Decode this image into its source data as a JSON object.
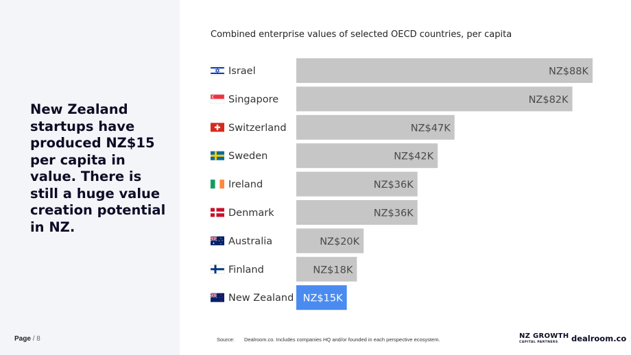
{
  "headline": "New Zealand startups have produced NZ$15 per capita in value. There is still a huge value creation potential in NZ.",
  "page": {
    "label": "Page",
    "number": "/ 8"
  },
  "source": {
    "label": "Source:",
    "text": "Dealroom.co. Includes companies HQ and/or founded in each perspective ecosystem."
  },
  "logos": {
    "nz_growth_line1": "NZ GROWTH",
    "nz_growth_line2": "CAPITAL PARTNERS",
    "dealroom": "dealroom.co"
  },
  "colors": {
    "bar": "#c6c6c6",
    "highlight": "#4a8bf0",
    "bar_label": "#4a4a4a",
    "highlight_label": "#ffffff"
  },
  "chart_data": {
    "type": "bar",
    "orientation": "horizontal",
    "title": "Combined enterprise values of selected OECD countries, per capita",
    "unit": "NZ$K",
    "categories": [
      "Israel",
      "Singapore",
      "Switzerland",
      "Sweden",
      "Ireland",
      "Denmark",
      "Australia",
      "Finland",
      "New Zealand"
    ],
    "values": [
      88,
      82,
      47,
      42,
      36,
      36,
      20,
      18,
      15
    ],
    "data_labels": [
      "NZ$88K",
      "NZ$82K",
      "NZ$47K",
      "NZ$42K",
      "NZ$36K",
      "NZ$36K",
      "NZ$20K",
      "NZ$18K",
      "NZ$15K"
    ],
    "flags": [
      "israel-flag-icon",
      "singapore-flag-icon",
      "switzerland-flag-icon",
      "sweden-flag-icon",
      "ireland-flag-icon",
      "denmark-flag-icon",
      "australia-flag-icon",
      "finland-flag-icon",
      "new-zealand-flag-icon"
    ],
    "highlight": "New Zealand",
    "xlim": [
      0,
      88
    ],
    "grid": false,
    "legend": "none"
  }
}
